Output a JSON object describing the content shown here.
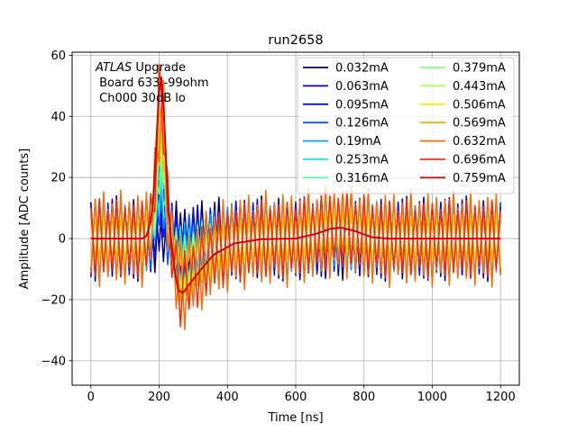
{
  "chart_data": {
    "type": "line",
    "title": "run2658",
    "xlabel": "Time [ns]",
    "ylabel": "Amplitude [ADC counts]",
    "xlim": [
      -55,
      1255
    ],
    "ylim": [
      -48,
      61
    ],
    "grid": true,
    "x_ticks": [
      0,
      200,
      400,
      600,
      800,
      1000,
      1200
    ],
    "y_ticks": [
      -40,
      -20,
      0,
      20,
      40,
      60
    ],
    "annotation": {
      "experiment": "ATLAS",
      "upgrade": "Upgrade",
      "board": "Board 633 -99ohm",
      "channel": "Ch000 30dB lo"
    },
    "legend_position": "upper right",
    "legend_columns": 2,
    "pulse": {
      "sample_spacing_ns": 6.25,
      "x": [
        0,
        150,
        165,
        180,
        190,
        197,
        205,
        215,
        225,
        240,
        255,
        270,
        290,
        320,
        360,
        420,
        500,
        600,
        660,
        700,
        730,
        770,
        820,
        870,
        950,
        1200
      ],
      "shape": [
        0,
        0,
        1,
        8,
        25,
        42,
        52,
        38,
        12,
        -6,
        -16,
        -17,
        -14,
        -10,
        -5,
        -1.5,
        -0.2,
        0,
        1.5,
        3,
        3.4,
        2.5,
        0.5,
        0,
        0,
        0
      ]
    },
    "series": [
      {
        "name": "0.032mA",
        "color": "#00007f",
        "scale": 0.1,
        "noise": 14
      },
      {
        "name": "0.063mA",
        "color": "#0000d0",
        "scale": 0.16,
        "noise": 13
      },
      {
        "name": "0.095mA",
        "color": "#0010ff",
        "scale": 0.22,
        "noise": 12
      },
      {
        "name": "0.126mA",
        "color": "#005cff",
        "scale": 0.28,
        "noise": 12
      },
      {
        "name": "0.19mA",
        "color": "#00a4ff",
        "scale": 0.34,
        "noise": 11
      },
      {
        "name": "0.253mA",
        "color": "#18e5dd",
        "scale": 0.4,
        "noise": 11
      },
      {
        "name": "0.316mA",
        "color": "#4bffac",
        "scale": 0.46,
        "noise": 10
      },
      {
        "name": "0.379mA",
        "color": "#7dff7a",
        "scale": 0.52,
        "noise": 10
      },
      {
        "name": "0.443mA",
        "color": "#acff4a",
        "scale": 0.6,
        "noise": 9
      },
      {
        "name": "0.506mA",
        "color": "#ffea00",
        "scale": 0.68,
        "noise": 9
      },
      {
        "name": "0.569mA",
        "color": "#ffb000",
        "scale": 0.76,
        "noise": 10
      },
      {
        "name": "0.632mA",
        "color": "#ff6c00",
        "scale": 0.86,
        "noise": 16
      },
      {
        "name": "0.696mA",
        "color": "#ff2a00",
        "scale": 0.96,
        "noise": 13
      },
      {
        "name": "0.759mA",
        "color": "#d60000",
        "scale": 1.05,
        "noise": 0
      }
    ]
  }
}
